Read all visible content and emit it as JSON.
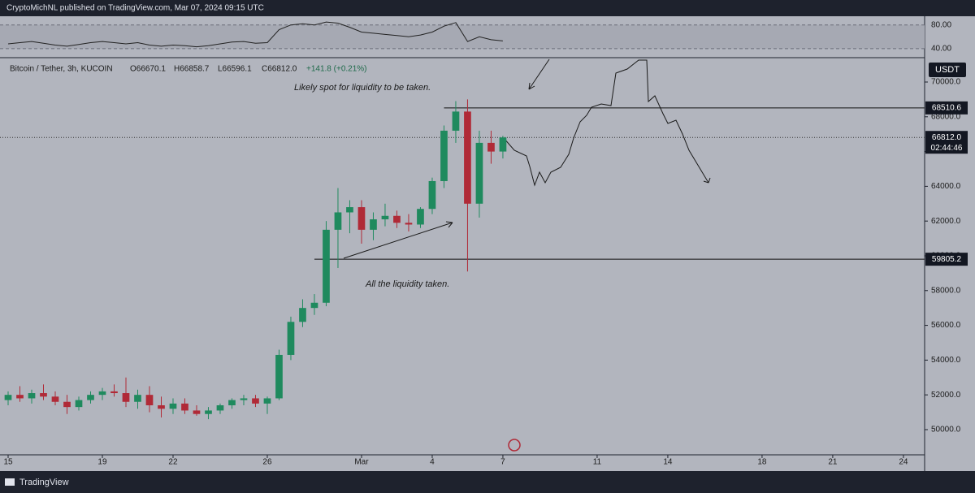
{
  "header": {
    "publisher": "CryptoMichNL published on TradingView.com, Mar 07, 2024 09:15 UTC"
  },
  "footer": {
    "brand": "TradingView"
  },
  "chart_data": {
    "type": "candlestick",
    "symbol": "Bitcoin / Tether, 3h, KUCOIN",
    "legend_values": [
      "O66670.1",
      "H66858.7",
      "L66596.1",
      "C66812.0",
      "+141.8 (+0.21%)"
    ],
    "currency": "USDT",
    "annotations": [
      "Likely spot for liquidity to be taken.",
      "All the liquidity taken."
    ],
    "x": [
      0,
      0.5,
      1,
      1.5,
      2,
      2.5,
      3,
      3.5,
      4,
      4.5,
      5,
      5.5,
      6,
      6.5,
      7,
      7.5,
      8,
      8.5,
      9,
      9.5,
      10,
      10.5,
      11,
      11.5,
      12,
      12.5,
      13,
      13.5,
      14,
      14.5,
      15,
      15.5,
      16,
      16.5,
      17,
      17.5,
      18,
      18.5,
      19,
      19.5,
      20,
      20.5,
      21
    ],
    "open": [
      51700,
      52000,
      51800,
      52100,
      51900,
      51600,
      51300,
      51700,
      52000,
      52200,
      52100,
      51600,
      52000,
      51400,
      51200,
      51500,
      51100,
      50900,
      51100,
      51400,
      51700,
      51800,
      51500,
      51800,
      54300,
      56200,
      57000,
      57300,
      61500,
      62500,
      62800,
      61500,
      62100,
      62300,
      61900,
      61800,
      62700,
      64300,
      67200,
      68300,
      63000,
      66500,
      66000
    ],
    "high": [
      52200,
      52500,
      52300,
      52600,
      52200,
      52000,
      51900,
      52200,
      52400,
      52600,
      53000,
      52300,
      52500,
      51900,
      51800,
      51800,
      51400,
      51300,
      51500,
      51800,
      52000,
      52000,
      51900,
      54600,
      56500,
      57500,
      57800,
      62000,
      63900,
      63200,
      63200,
      62500,
      63000,
      62600,
      62400,
      62800,
      64500,
      67500,
      68900,
      69000,
      67200,
      67200,
      66900
    ],
    "low": [
      51400,
      51600,
      51500,
      51700,
      51400,
      50900,
      51100,
      51500,
      51700,
      51900,
      51300,
      51200,
      51000,
      50700,
      50900,
      50900,
      50800,
      50600,
      50900,
      51200,
      51400,
      51300,
      50900,
      51700,
      54000,
      55900,
      56600,
      57100,
      59300,
      61300,
      60700,
      60900,
      61700,
      61600,
      61400,
      61600,
      62400,
      63900,
      66500,
      59100,
      62200,
      65300,
      65600
    ],
    "close": [
      52000,
      51800,
      52100,
      51900,
      51600,
      51300,
      51700,
      52000,
      52200,
      52100,
      51600,
      52000,
      51400,
      51200,
      51500,
      51100,
      50900,
      51100,
      51400,
      51700,
      51800,
      51500,
      51800,
      54300,
      56200,
      57000,
      57300,
      61500,
      62500,
      62800,
      61500,
      62100,
      62300,
      61900,
      61800,
      62700,
      64300,
      67200,
      68300,
      63000,
      66500,
      66000,
      66812
    ],
    "up_color": "#1f8a5e",
    "down_color": "#b02a37",
    "xlim": [
      -0.345,
      38.9
    ],
    "xticks": [
      {
        "value": 0,
        "label": "15"
      },
      {
        "value": 4,
        "label": "19"
      },
      {
        "value": 7,
        "label": "22"
      },
      {
        "value": 11,
        "label": "26"
      },
      {
        "value": 15,
        "label": "Mar"
      },
      {
        "value": 18,
        "label": "4"
      },
      {
        "value": 21,
        "label": "7"
      },
      {
        "value": 25,
        "label": "11"
      },
      {
        "value": 28,
        "label": "14"
      },
      {
        "value": 32,
        "label": "18"
      },
      {
        "value": 35,
        "label": "21"
      },
      {
        "value": 38,
        "label": "24"
      }
    ],
    "ylim": [
      48550,
      71355
    ],
    "yticks": [
      {
        "value": 50000,
        "label": "50000.0"
      },
      {
        "value": 52000,
        "label": "52000.0"
      },
      {
        "value": 54000,
        "label": "54000.0"
      },
      {
        "value": 56000,
        "label": "56000.0"
      },
      {
        "value": 58000,
        "label": "58000.0"
      },
      {
        "value": 60000,
        "label": "60000.0"
      },
      {
        "value": 62000,
        "label": "62000.0"
      },
      {
        "value": 64000,
        "label": "64000.0"
      },
      {
        "value": 66000,
        "label": "66000.0"
      },
      {
        "value": 68000,
        "label": "68000.0"
      },
      {
        "value": 70000,
        "label": "70000.0"
      }
    ],
    "levels": [
      68510.6,
      59805.2
    ],
    "last_price": {
      "value": 66812,
      "label": "66812.0"
    },
    "countdown": "02:44:46",
    "rsi": {
      "values": [
        48,
        50,
        52,
        49,
        46,
        44,
        47,
        50,
        52,
        50,
        48,
        50,
        46,
        44,
        46,
        45,
        43,
        45,
        48,
        51,
        52,
        49,
        50,
        72,
        80,
        82,
        80,
        85,
        83,
        76,
        68,
        66,
        64,
        62,
        60,
        63,
        68,
        78,
        84,
        52,
        60,
        55,
        53
      ],
      "color": "#222222",
      "ylim": [
        26,
        92
      ],
      "yticks": [
        {
          "value": 80,
          "label": "80.00"
        },
        {
          "value": 40,
          "label": "40.00"
        }
      ]
    }
  }
}
